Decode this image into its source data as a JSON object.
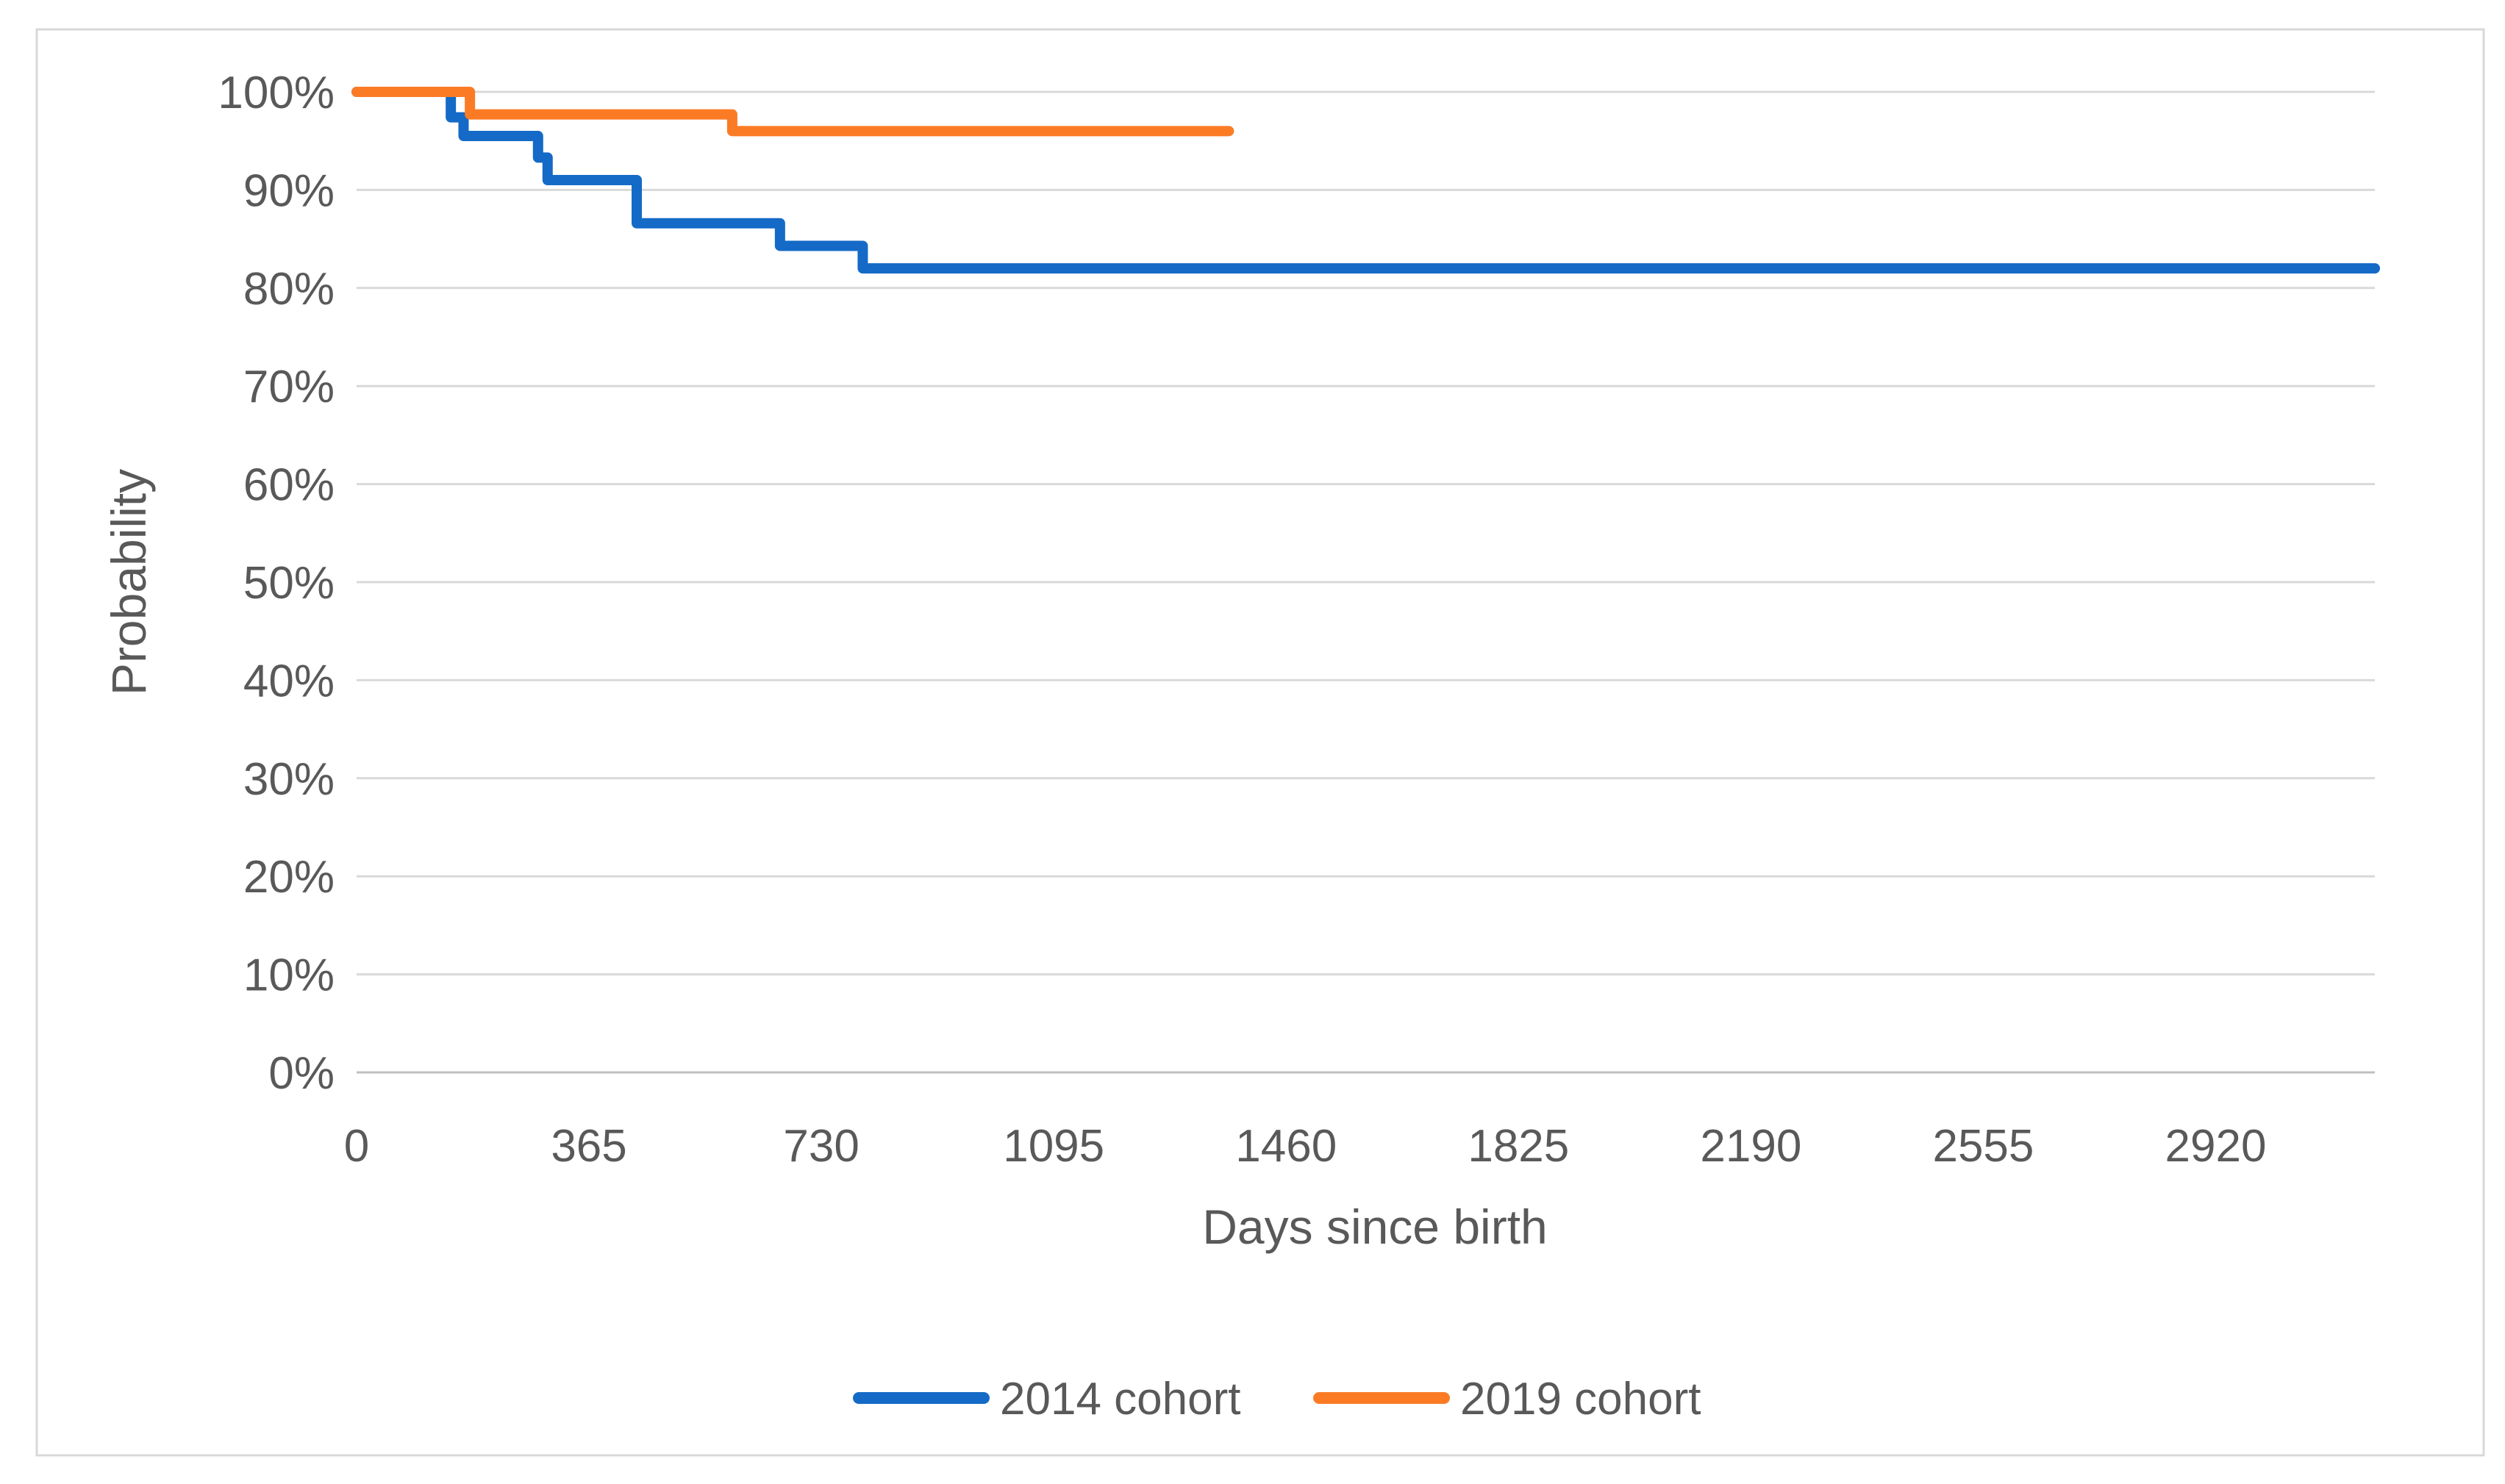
{
  "chart_data": {
    "type": "line",
    "line_style": "step-after",
    "description": "Kaplan-Meier style survival step chart comparing two birth cohorts",
    "xlabel": "Days since birth",
    "ylabel": "Probability",
    "xlim": [
      0,
      3170
    ],
    "ylim": [
      0,
      100
    ],
    "x_ticks": [
      0,
      365,
      730,
      1095,
      1460,
      1825,
      2190,
      2555,
      2920
    ],
    "y_ticks": [
      {
        "value": 0,
        "label": "0%"
      },
      {
        "value": 10,
        "label": "10%"
      },
      {
        "value": 20,
        "label": "20%"
      },
      {
        "value": 30,
        "label": "30%"
      },
      {
        "value": 40,
        "label": "40%"
      },
      {
        "value": 50,
        "label": "50%"
      },
      {
        "value": 60,
        "label": "60%"
      },
      {
        "value": 70,
        "label": "70%"
      },
      {
        "value": 80,
        "label": "80%"
      },
      {
        "value": 90,
        "label": "90%"
      },
      {
        "value": 100,
        "label": "100%"
      }
    ],
    "grid": "horizontal",
    "legend_position": "bottom-center",
    "series": [
      {
        "name": "2014 cohort",
        "color": "#146AC6",
        "start": {
          "day": 0,
          "probability": 100
        },
        "end_day": 3170,
        "steps": [
          {
            "day": 148,
            "probability": 97.4
          },
          {
            "day": 168,
            "probability": 95.5
          },
          {
            "day": 285,
            "probability": 93.3
          },
          {
            "day": 300,
            "probability": 91.0
          },
          {
            "day": 440,
            "probability": 86.6
          },
          {
            "day": 665,
            "probability": 84.3
          },
          {
            "day": 795,
            "probability": 82.0
          }
        ]
      },
      {
        "name": "2019 cohort",
        "color": "#FB7B25",
        "start": {
          "day": 0,
          "probability": 100
        },
        "end_day": 1370,
        "steps": [
          {
            "day": 178,
            "probability": 97.7
          },
          {
            "day": 590,
            "probability": 96.0
          }
        ]
      }
    ]
  },
  "style": {
    "grid_color": "#D9D9D9",
    "axis_line_color": "#BFBFBF",
    "text_color": "#595959",
    "border_color": "#D8D8D8",
    "background": "#FFFFFF"
  }
}
